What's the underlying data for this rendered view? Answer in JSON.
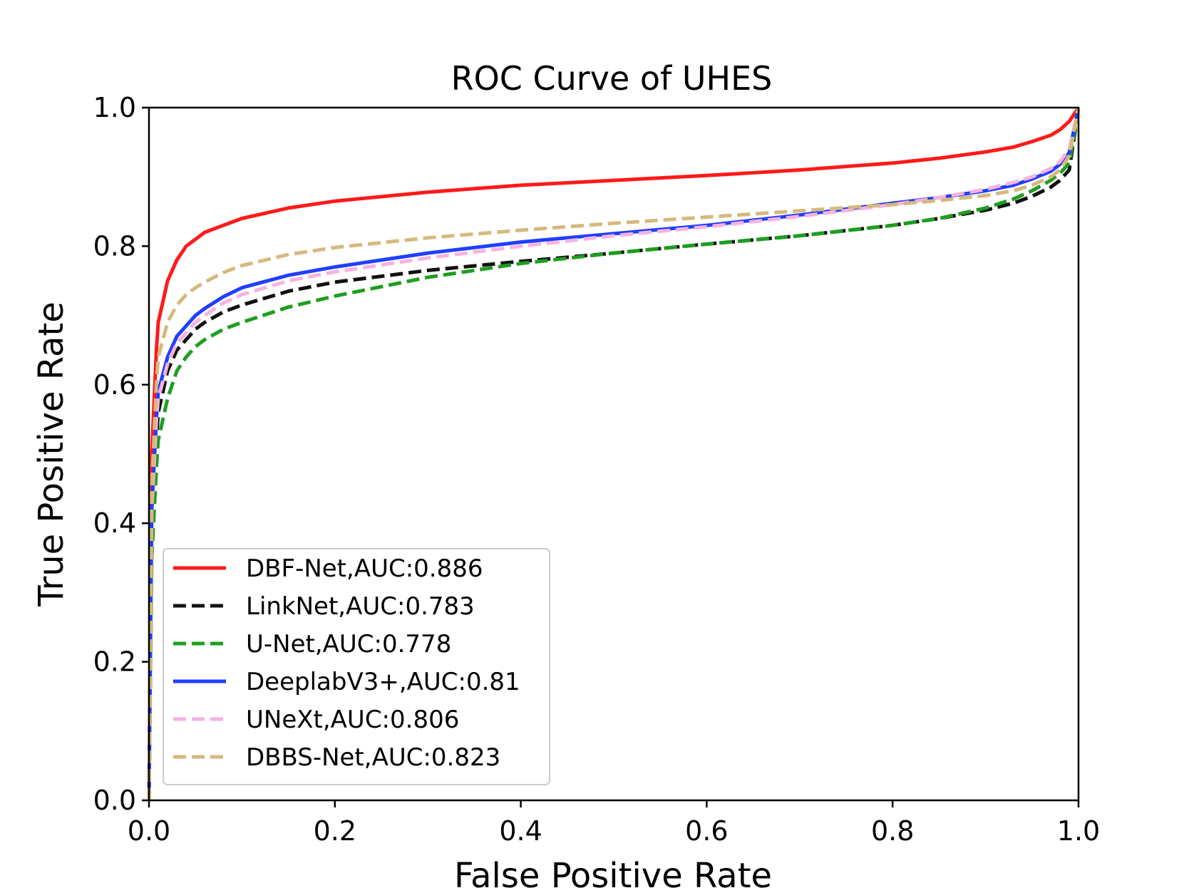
{
  "chart_data": {
    "type": "line",
    "title": "ROC Curve of UHES",
    "xlabel": "False Positive Rate",
    "ylabel": "True Positive Rate",
    "xlim": [
      0,
      1
    ],
    "ylim": [
      0,
      1
    ],
    "xticks": [
      0.0,
      0.2,
      0.4,
      0.6,
      0.8,
      1.0
    ],
    "yticks": [
      0.0,
      0.2,
      0.4,
      0.6,
      0.8,
      1.0
    ],
    "xtick_labels": [
      "0.0",
      "0.2",
      "0.4",
      "0.6",
      "0.8",
      "1.0"
    ],
    "ytick_labels": [
      "0.0",
      "0.2",
      "0.4",
      "0.6",
      "0.8",
      "1.0"
    ],
    "grid": false,
    "legend_position": "lower-left",
    "series": [
      {
        "name": "DBF-Net,AUC:0.886",
        "color": "#ff1a1a",
        "style": "solid",
        "x": [
          0,
          0.003,
          0.008,
          0.01,
          0.02,
          0.03,
          0.04,
          0.05,
          0.06,
          0.08,
          0.1,
          0.15,
          0.2,
          0.3,
          0.4,
          0.5,
          0.6,
          0.7,
          0.8,
          0.85,
          0.9,
          0.93,
          0.95,
          0.97,
          0.98,
          0.99,
          1.0
        ],
        "y": [
          0,
          0.5,
          0.65,
          0.69,
          0.75,
          0.78,
          0.8,
          0.81,
          0.82,
          0.83,
          0.84,
          0.855,
          0.865,
          0.878,
          0.888,
          0.895,
          0.902,
          0.91,
          0.92,
          0.927,
          0.936,
          0.943,
          0.951,
          0.96,
          0.968,
          0.98,
          1.0
        ]
      },
      {
        "name": "LinkNet,AUC:0.783",
        "color": "#111111",
        "style": "dashed",
        "x": [
          0,
          0.003,
          0.008,
          0.01,
          0.02,
          0.03,
          0.04,
          0.05,
          0.06,
          0.08,
          0.1,
          0.15,
          0.2,
          0.3,
          0.4,
          0.5,
          0.6,
          0.7,
          0.8,
          0.85,
          0.9,
          0.93,
          0.95,
          0.97,
          0.98,
          0.99,
          1.0
        ],
        "y": [
          0,
          0.4,
          0.52,
          0.56,
          0.62,
          0.65,
          0.665,
          0.68,
          0.69,
          0.705,
          0.715,
          0.735,
          0.748,
          0.765,
          0.778,
          0.79,
          0.803,
          0.815,
          0.83,
          0.84,
          0.852,
          0.862,
          0.872,
          0.885,
          0.895,
          0.91,
          1.0
        ]
      },
      {
        "name": "U-Net,AUC:0.778",
        "color": "#1f9e1f",
        "style": "dashed",
        "x": [
          0,
          0.003,
          0.008,
          0.01,
          0.02,
          0.03,
          0.04,
          0.05,
          0.06,
          0.08,
          0.1,
          0.15,
          0.2,
          0.3,
          0.4,
          0.5,
          0.6,
          0.7,
          0.8,
          0.85,
          0.9,
          0.93,
          0.95,
          0.97,
          0.98,
          0.99,
          1.0
        ],
        "y": [
          0,
          0.35,
          0.48,
          0.52,
          0.58,
          0.62,
          0.64,
          0.655,
          0.665,
          0.68,
          0.69,
          0.712,
          0.728,
          0.755,
          0.775,
          0.79,
          0.803,
          0.815,
          0.83,
          0.84,
          0.855,
          0.868,
          0.88,
          0.895,
          0.905,
          0.92,
          1.0
        ]
      },
      {
        "name": "DeeplabV3+,AUC:0.81",
        "color": "#1f3fff",
        "style": "solid",
        "x": [
          0,
          0.003,
          0.008,
          0.01,
          0.02,
          0.03,
          0.04,
          0.05,
          0.06,
          0.08,
          0.1,
          0.15,
          0.2,
          0.3,
          0.4,
          0.5,
          0.6,
          0.7,
          0.8,
          0.85,
          0.9,
          0.93,
          0.95,
          0.97,
          0.98,
          0.99,
          1.0
        ],
        "y": [
          0,
          0.42,
          0.55,
          0.59,
          0.64,
          0.67,
          0.685,
          0.7,
          0.71,
          0.727,
          0.74,
          0.758,
          0.77,
          0.79,
          0.806,
          0.818,
          0.83,
          0.845,
          0.862,
          0.87,
          0.88,
          0.888,
          0.897,
          0.908,
          0.918,
          0.935,
          1.0
        ]
      },
      {
        "name": "UNeXt,AUC:0.806",
        "color": "#f6b2e3",
        "style": "dashed",
        "x": [
          0,
          0.003,
          0.008,
          0.01,
          0.02,
          0.03,
          0.04,
          0.05,
          0.06,
          0.08,
          0.1,
          0.15,
          0.2,
          0.3,
          0.4,
          0.5,
          0.6,
          0.7,
          0.8,
          0.85,
          0.9,
          0.93,
          0.95,
          0.97,
          0.98,
          0.99,
          1.0
        ],
        "y": [
          0,
          0.42,
          0.55,
          0.58,
          0.63,
          0.66,
          0.675,
          0.69,
          0.7,
          0.718,
          0.73,
          0.75,
          0.763,
          0.783,
          0.8,
          0.815,
          0.828,
          0.843,
          0.86,
          0.87,
          0.882,
          0.892,
          0.9,
          0.912,
          0.922,
          0.94,
          1.0
        ]
      },
      {
        "name": "DBBS-Net,AUC:0.823",
        "color": "#d6b97d",
        "style": "dashed",
        "x": [
          0,
          0.003,
          0.008,
          0.01,
          0.02,
          0.03,
          0.04,
          0.05,
          0.06,
          0.08,
          0.1,
          0.15,
          0.2,
          0.3,
          0.4,
          0.5,
          0.6,
          0.7,
          0.8,
          0.85,
          0.9,
          0.93,
          0.95,
          0.97,
          0.98,
          0.99,
          1.0
        ],
        "y": [
          0,
          0.45,
          0.6,
          0.64,
          0.69,
          0.715,
          0.73,
          0.74,
          0.748,
          0.762,
          0.772,
          0.788,
          0.798,
          0.812,
          0.823,
          0.833,
          0.842,
          0.851,
          0.86,
          0.866,
          0.873,
          0.88,
          0.888,
          0.9,
          0.91,
          0.93,
          1.0
        ]
      }
    ]
  }
}
